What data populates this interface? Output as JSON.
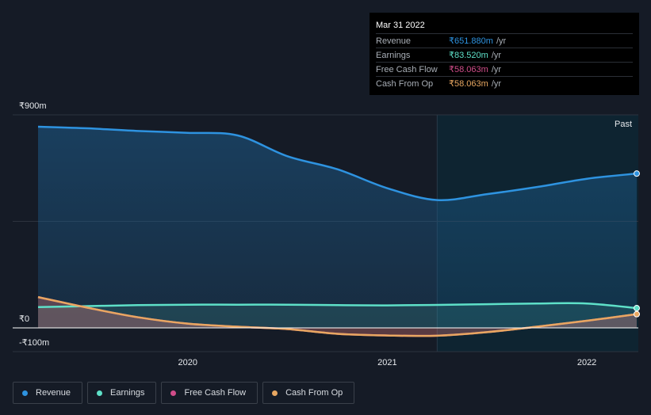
{
  "chart_data": {
    "type": "area",
    "y_ticks": [
      "₹900m",
      "₹0",
      "-₹100m"
    ],
    "x_ticks": [
      {
        "label": "2020",
        "x": 2020.0
      },
      {
        "label": "2021",
        "x": 2021.0
      },
      {
        "label": "2022",
        "x": 2022.0
      }
    ],
    "past_label": "Past",
    "ylim": [
      -100,
      900
    ],
    "xlim": [
      2019.13,
      2022.25
    ],
    "highlight_start": 2021.25,
    "series": [
      {
        "name": "Revenue",
        "color": "#2e93e0",
        "x": [
          2019.25,
          2019.5,
          2019.75,
          2020.0,
          2020.25,
          2020.5,
          2020.75,
          2021.0,
          2021.25,
          2021.5,
          2021.75,
          2022.0,
          2022.25
        ],
        "y": [
          850,
          843,
          832,
          824,
          813,
          725,
          670,
          590,
          540,
          565,
          595,
          630,
          651.88
        ]
      },
      {
        "name": "Earnings",
        "color": "#5ee0c8",
        "x": [
          2019.25,
          2019.5,
          2019.75,
          2020.0,
          2020.25,
          2020.5,
          2020.75,
          2021.0,
          2021.25,
          2021.5,
          2021.75,
          2022.0,
          2022.25
        ],
        "y": [
          88,
          92,
          96,
          98,
          98,
          98,
          96,
          95,
          97,
          100,
          103,
          103,
          83.52
        ]
      },
      {
        "name": "Free Cash Flow",
        "color": "#d14d8a",
        "x": [
          2019.25,
          2019.5,
          2019.75,
          2020.0,
          2020.25,
          2020.5,
          2020.75,
          2021.0,
          2021.25,
          2021.5,
          2021.75,
          2022.0,
          2022.25
        ],
        "y": [
          130,
          85,
          45,
          18,
          5,
          -5,
          -25,
          -32,
          -33,
          -18,
          5,
          30,
          58.063
        ]
      },
      {
        "name": "Cash From Op",
        "color": "#e8a761",
        "x": [
          2019.25,
          2019.5,
          2019.75,
          2020.0,
          2020.25,
          2020.5,
          2020.75,
          2021.0,
          2021.25,
          2021.5,
          2021.75,
          2022.0,
          2022.25
        ],
        "y": [
          130,
          85,
          45,
          18,
          5,
          -5,
          -25,
          -32,
          -33,
          -18,
          5,
          30,
          58.063
        ]
      }
    ]
  },
  "tooltip": {
    "date": "Mar 31 2022",
    "rows": [
      {
        "label": "Revenue",
        "value": "₹651.880m",
        "unit": "/yr",
        "color": "#2e93e0"
      },
      {
        "label": "Earnings",
        "value": "₹83.520m",
        "unit": "/yr",
        "color": "#5ee0c8"
      },
      {
        "label": "Free Cash Flow",
        "value": "₹58.063m",
        "unit": "/yr",
        "color": "#d14d8a"
      },
      {
        "label": "Cash From Op",
        "value": "₹58.063m",
        "unit": "/yr",
        "color": "#e8a761"
      }
    ]
  },
  "legend": [
    {
      "label": "Revenue",
      "color": "#2e93e0"
    },
    {
      "label": "Earnings",
      "color": "#5ee0c8"
    },
    {
      "label": "Free Cash Flow",
      "color": "#d14d8a"
    },
    {
      "label": "Cash From Op",
      "color": "#e8a761"
    }
  ]
}
